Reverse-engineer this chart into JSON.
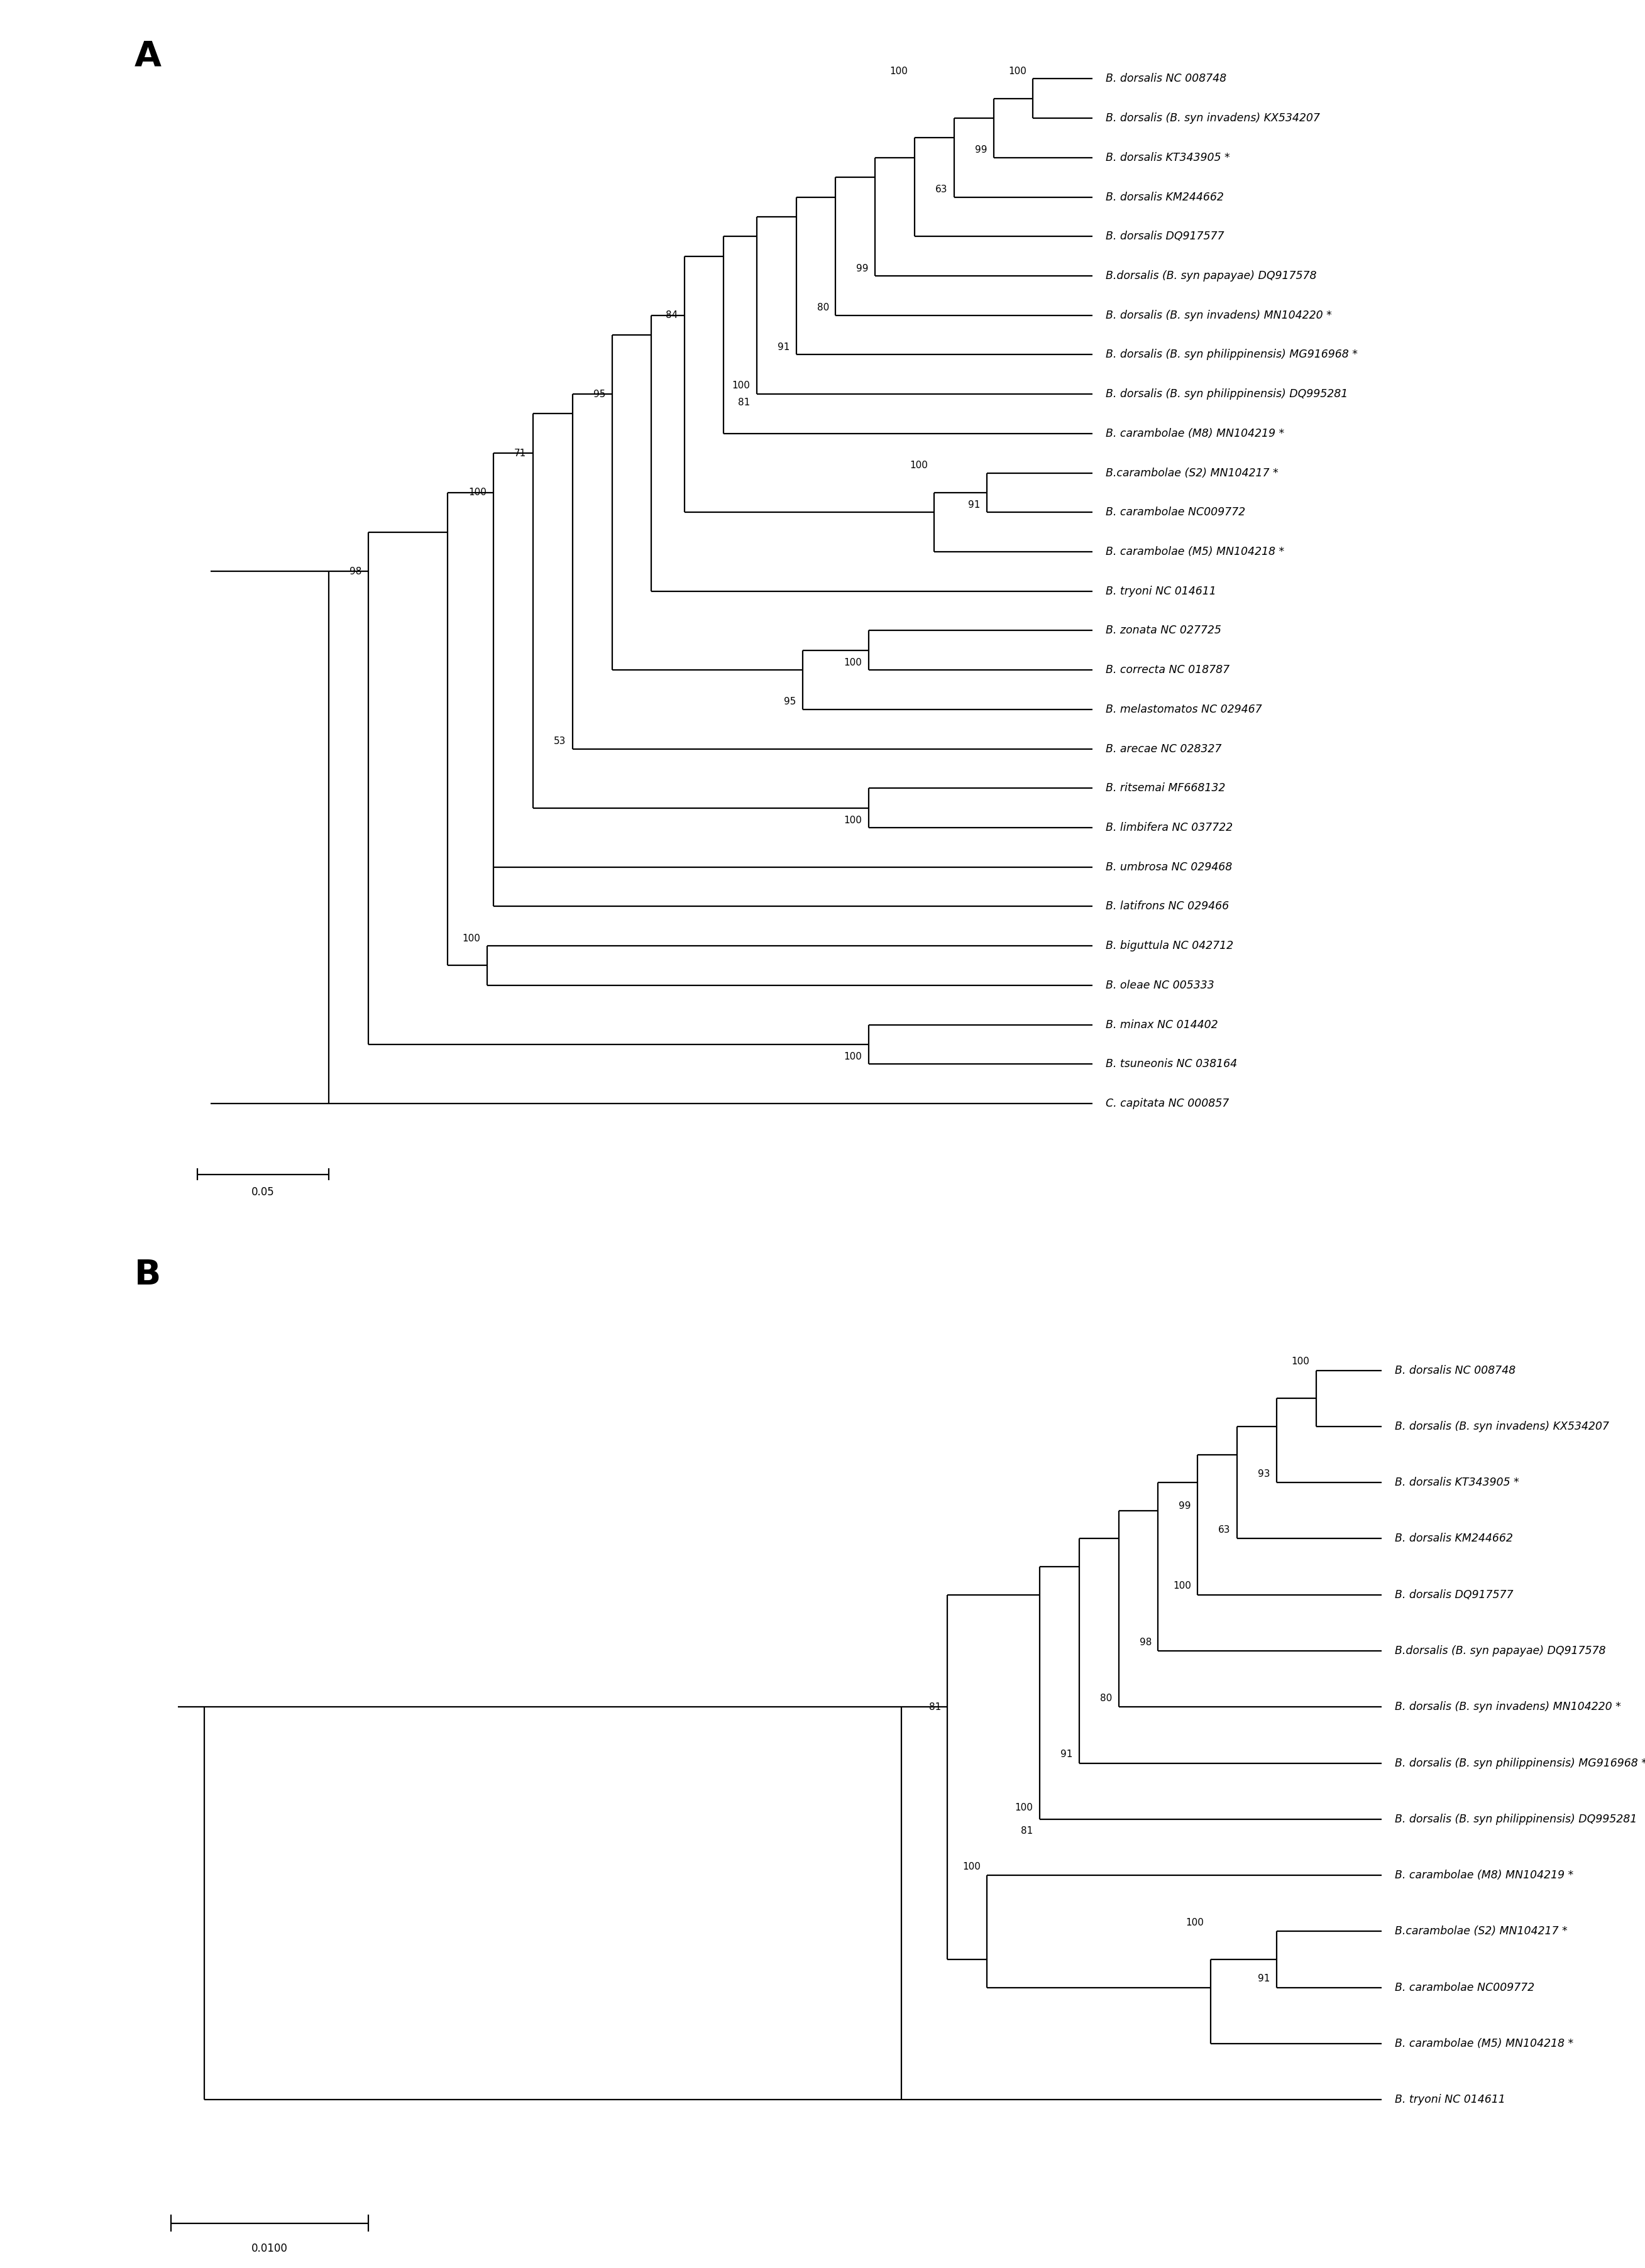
{
  "tree_A": {
    "panel_label": "A",
    "scale_label": "0.05",
    "taxa": [
      "B. dorsalis NC 008748",
      "B. dorsalis (B. syn invadens) KX534207",
      "B. dorsalis KT343905 *",
      "B. dorsalis KM244662",
      "B. dorsalis DQ917577",
      "B.dorsalis (B. syn papayae) DQ917578",
      "B. dorsalis (B. syn invadens) MN104220 *",
      "B. dorsalis (B. syn philippinensis) MG916968 *",
      "B. dorsalis (B. syn philippinensis) DQ995281",
      "B. carambolae (M8) MN104219 *",
      "B.carambolae (S2) MN104217 *",
      "B. carambolae NC009772",
      "B. carambolae (M5) MN104218 *",
      "B. tryoni NC 014611",
      "B. zonata NC 027725",
      "B. correcta NC 018787",
      "B. melastomatos NC 029467",
      "B. arecae NC 028327",
      "B. ritsemai MF668132",
      "B. limbifera NC 037722",
      "B. umbrosa NC 029468",
      "B. latifrons NC 029466",
      "B. biguttula NC 042712",
      "B. oleae NC 005333",
      "B. minax NC 014402",
      "B. tsuneonis NC 038164",
      "C. capitata NC 000857"
    ]
  },
  "tree_B": {
    "panel_label": "B",
    "scale_label": "0.0100",
    "taxa": [
      "B. dorsalis NC 008748",
      "B. dorsalis (B. syn invadens) KX534207",
      "B. dorsalis KT343905 *",
      "B. dorsalis KM244662",
      "B. dorsalis DQ917577",
      "B.dorsalis (B. syn papayae) DQ917578",
      "B. dorsalis (B. syn invadens) MN104220 *",
      "B. dorsalis (B. syn philippinensis) MG916968 *",
      "B. dorsalis (B. syn philippinensis) DQ995281",
      "B. carambolae (M8) MN104219 *",
      "B.carambolae (S2) MN104217 *",
      "B. carambolae NC009772",
      "B. carambolae (M5) MN104218 *",
      "B. tryoni NC 014611"
    ]
  }
}
